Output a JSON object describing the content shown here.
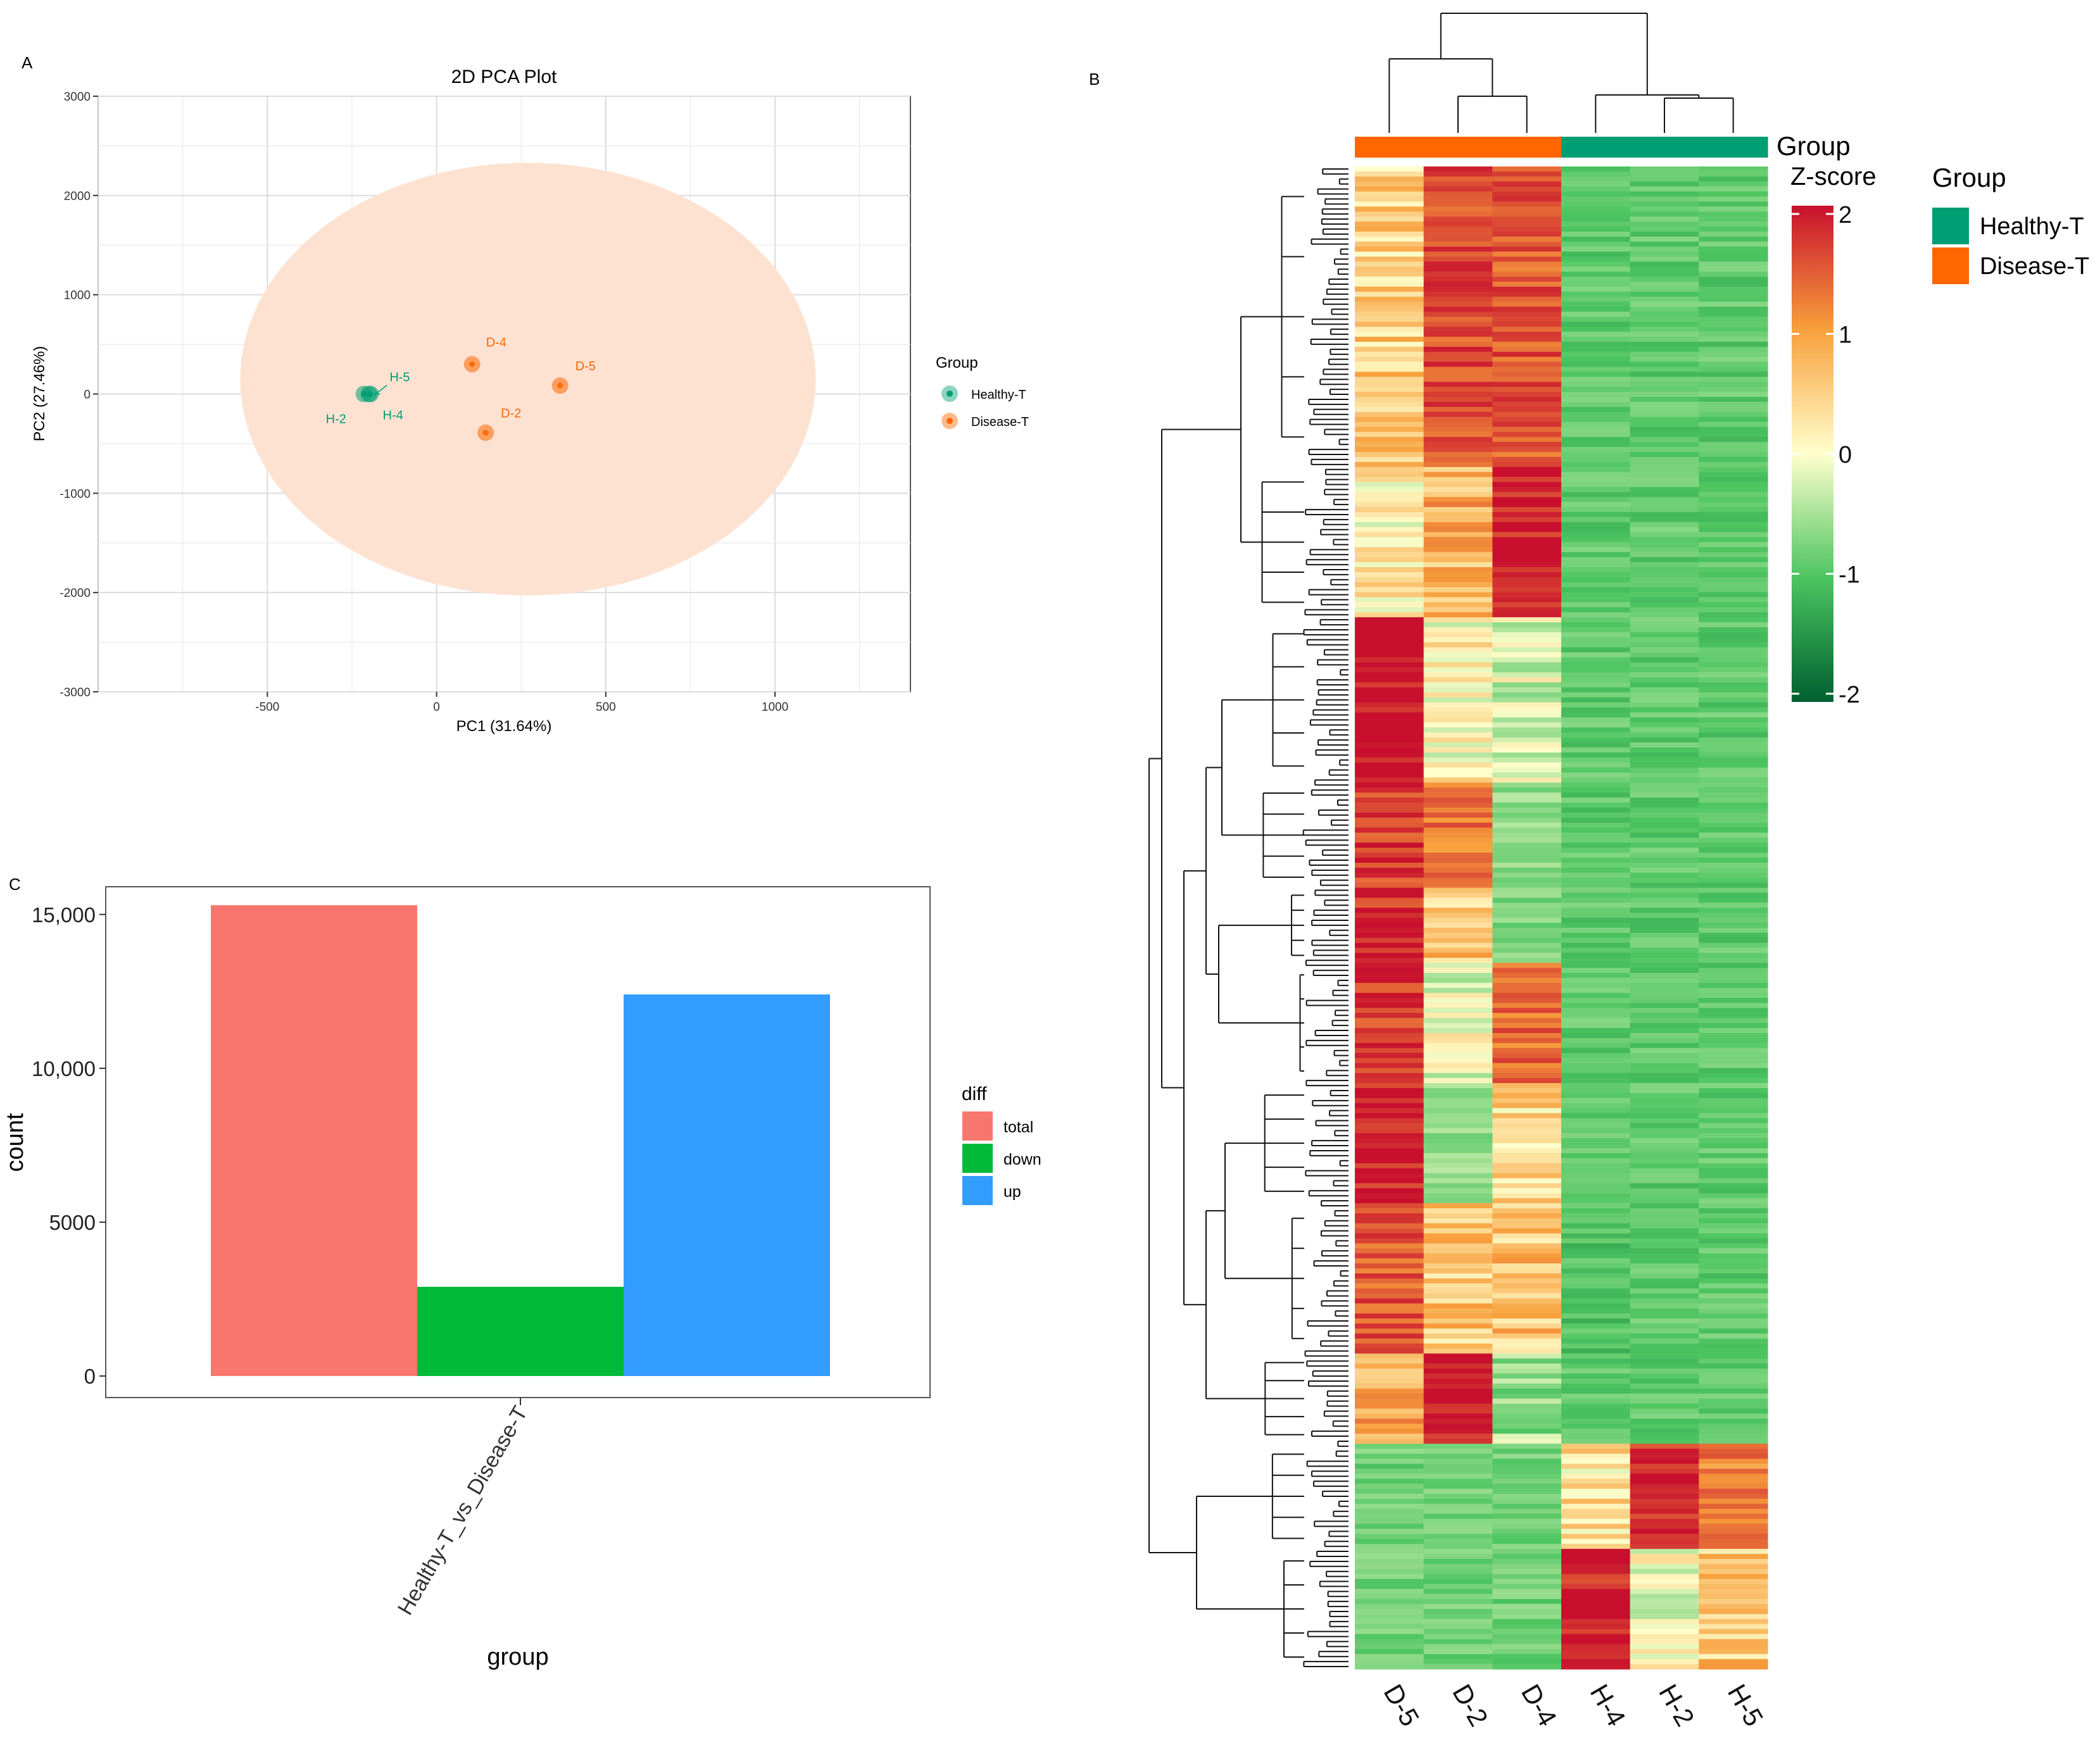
{
  "panels": {
    "a": "A",
    "b": "B",
    "c": "C"
  },
  "colors": {
    "healthy": "#009E73",
    "disease": "#FF6600",
    "total": "#F8766D",
    "down": "#00BA38",
    "up": "#339CFF",
    "ellipse": "#FDE2D2"
  },
  "chart_data": [
    {
      "type": "scatter",
      "title": "2D PCA Plot",
      "xlabel": "PC1 (31.64%)",
      "ylabel": "PC2 (27.46%)",
      "xlim": [
        -1000,
        1400
      ],
      "ylim": [
        -3000,
        3000
      ],
      "x_ticks": [
        -500,
        0,
        500,
        1000
      ],
      "x_tick_labels": [
        "-500",
        "0",
        "500",
        "1000"
      ],
      "y_ticks": [
        3000,
        2000,
        1000,
        0,
        -1000,
        -2000,
        -3000
      ],
      "y_tick_labels": [
        "3000",
        "2000",
        "1000",
        "0",
        "-1000",
        "-2000",
        "-3000"
      ],
      "grid": true,
      "legend_title": "Group",
      "legend_position": "right",
      "ellipse": {
        "center_x": 270,
        "center_y": 150,
        "radius_x": 850,
        "radius_y": 2180
      },
      "series": [
        {
          "name": "Healthy-T",
          "color": "#009E73",
          "points": [
            {
              "label": "H-2",
              "x": -215,
              "y": 0
            },
            {
              "label": "H-4",
              "x": -200,
              "y": 0
            },
            {
              "label": "H-5",
              "x": -195,
              "y": 0
            }
          ]
        },
        {
          "name": "Disease-T",
          "color": "#FF6600",
          "points": [
            {
              "label": "D-4",
              "x": 105,
              "y": 300
            },
            {
              "label": "D-5",
              "x": 365,
              "y": 85
            },
            {
              "label": "D-2",
              "x": 145,
              "y": -390
            }
          ]
        }
      ]
    },
    {
      "type": "heatmap",
      "columns": [
        "D-5",
        "D-2",
        "D-4",
        "H-4",
        "H-2",
        "H-5"
      ],
      "column_groups": [
        "Disease-T",
        "Disease-T",
        "Disease-T",
        "Healthy-T",
        "Healthy-T",
        "Healthy-T"
      ],
      "annotation_title": "Group",
      "scale_title": "Z-score",
      "scale_ticks": [
        2,
        1,
        0,
        -1,
        -2
      ],
      "scale_tick_labels": [
        "2",
        "1",
        "0",
        "-1",
        "-2"
      ],
      "scale_colors": [
        "#C8102E",
        "#F8A03C",
        "#FFFFCC",
        "#4CC460",
        "#006030"
      ],
      "legend_title": "Group",
      "legend_items": [
        "Healthy-T",
        "Disease-T"
      ],
      "row_blocks": [
        {
          "rows": 0.2,
          "values": [
            0.5,
            1.6,
            1.5,
            -0.9,
            -0.9,
            -0.9
          ]
        },
        {
          "rows": 0.1,
          "values": [
            0.2,
            0.8,
            1.9,
            -0.9,
            -0.9,
            -0.9
          ]
        },
        {
          "rows": 0.11,
          "values": [
            2.0,
            0.1,
            -0.2,
            -0.9,
            -0.9,
            -0.9
          ]
        },
        {
          "rows": 0.07,
          "values": [
            1.7,
            1.3,
            -0.6,
            -0.9,
            -0.9,
            -0.9
          ]
        },
        {
          "rows": 0.05,
          "values": [
            1.8,
            0.6,
            -0.7,
            -0.9,
            -0.9,
            -0.9
          ]
        },
        {
          "rows": 0.08,
          "values": [
            1.7,
            -0.1,
            1.4,
            -0.9,
            -0.9,
            -0.9
          ]
        },
        {
          "rows": 0.08,
          "values": [
            1.9,
            -0.6,
            0.4,
            -0.9,
            -0.9,
            -0.9
          ]
        },
        {
          "rows": 0.1,
          "values": [
            1.5,
            0.6,
            0.6,
            -1.0,
            -0.9,
            -0.9
          ]
        },
        {
          "rows": 0.06,
          "values": [
            0.8,
            2.0,
            -0.5,
            -0.9,
            -0.9,
            -0.9
          ]
        },
        {
          "rows": 0.07,
          "values": [
            -0.8,
            -0.8,
            -0.8,
            0.3,
            1.8,
            1.2
          ]
        },
        {
          "rows": 0.08,
          "values": [
            -0.8,
            -0.8,
            -0.8,
            1.9,
            0.0,
            0.6
          ]
        }
      ]
    },
    {
      "type": "bar",
      "categories": [
        "Healthy-T_vs_Disease-T"
      ],
      "series": [
        {
          "name": "total",
          "values": [
            15300
          ]
        },
        {
          "name": "down",
          "values": [
            2900
          ]
        },
        {
          "name": "up",
          "values": [
            12400
          ]
        }
      ],
      "xlabel": "group",
      "ylabel": "count",
      "ylim": [
        -700,
        15900
      ],
      "y_ticks": [
        0,
        5000,
        10000,
        15000
      ],
      "y_tick_labels": [
        "0",
        "5000",
        "10,000",
        "15,000"
      ],
      "legend_title": "diff",
      "legend_position": "right"
    }
  ]
}
